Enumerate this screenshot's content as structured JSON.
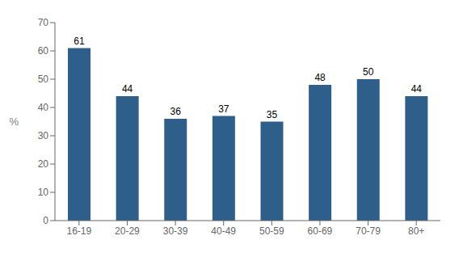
{
  "chart_data": {
    "type": "bar",
    "categories": [
      "16-19",
      "20-29",
      "30-39",
      "40-49",
      "50-59",
      "60-69",
      "70-79",
      "80+"
    ],
    "values": [
      61,
      44,
      36,
      37,
      35,
      48,
      50,
      44
    ],
    "color": "#2E5F8A",
    "ylabel": "%",
    "ylim": [
      0,
      70
    ],
    "yticks": [
      0,
      10,
      20,
      30,
      40,
      50,
      60,
      70
    ],
    "grid": false,
    "data_labels": true
  }
}
